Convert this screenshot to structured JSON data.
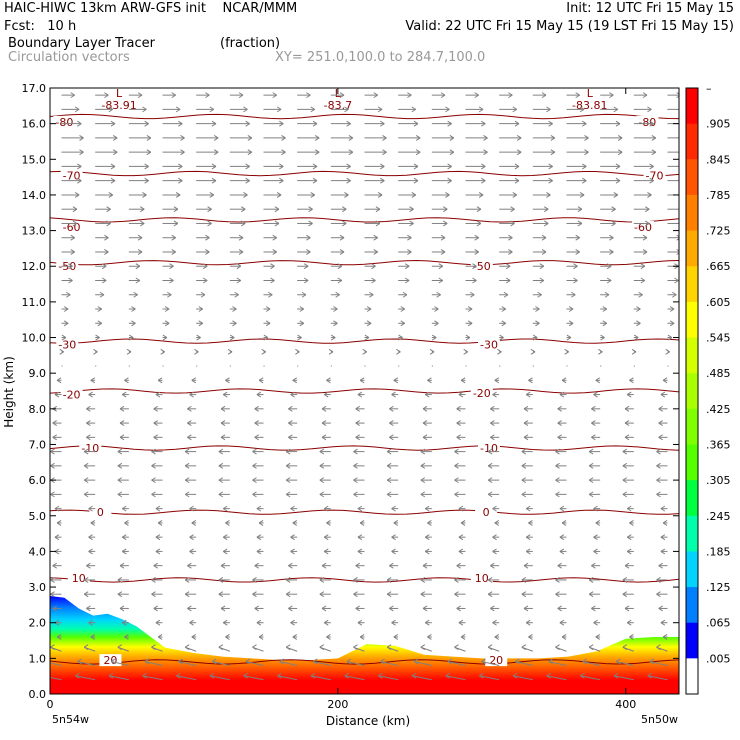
{
  "header": {
    "line1_left": "HAIC-HIWC 13km ARW-GFS init    NCAR/MMM",
    "line1_right": "Init: 12 UTC Fri 15 May 15",
    "line2_left": "Fcst:   10 h",
    "line2_right": "Valid: 22 UTC Fri 15 May 15 (19 LST Fri 15 May 15)",
    "field_name": "Boundary Layer Tracer",
    "field_units": "(fraction)",
    "vector_name": "Circulation vectors",
    "xy_text": "XY= 251.0,100.0 to 284.7,100.0"
  },
  "chart_data": {
    "type": "heatmap",
    "xlabel": "Distance (km)",
    "ylabel": "Height (km)",
    "xlim": [
      0,
      437
    ],
    "ylim": [
      0,
      17
    ],
    "x_ticks": [
      "0",
      "200",
      "400"
    ],
    "x_tick_values": [
      0,
      200,
      400
    ],
    "x_end_labels": [
      "5n54w",
      "5n50w"
    ],
    "y_ticks": [
      "0.0",
      "1.0",
      "2.0",
      "3.0",
      "4.0",
      "5.0",
      "6.0",
      "7.0",
      "8.0",
      "9.0",
      "10.0",
      "11.0",
      "12.0",
      "13.0",
      "14.0",
      "15.0",
      "16.0",
      "17.0"
    ],
    "colorbar": {
      "labels": [
        "–",
        ".905",
        ".845",
        ".785",
        ".725",
        ".665",
        ".605",
        ".545",
        ".485",
        ".425",
        ".365",
        ".305",
        ".245",
        ".185",
        ".125",
        ".065",
        ".005"
      ],
      "colors": [
        "#ff0000",
        "#ff2a00",
        "#ff5500",
        "#ff7f00",
        "#ffaa00",
        "#ffd400",
        "#ffff00",
        "#d4ff00",
        "#aaff00",
        "#7fff00",
        "#55ff00",
        "#00ff40",
        "#00ffaa",
        "#00d4ff",
        "#007fff",
        "#0000ff",
        "#ffffff"
      ]
    },
    "tracer_top_profile": {
      "x_km": [
        0,
        10,
        20,
        30,
        40,
        50,
        60,
        70,
        80,
        100,
        120,
        140,
        160,
        180,
        200,
        220,
        240,
        260,
        280,
        300,
        320,
        340,
        360,
        380,
        400,
        420,
        437
      ],
      "top_km": [
        2.75,
        2.7,
        2.4,
        2.2,
        2.25,
        2.1,
        1.9,
        1.6,
        1.3,
        1.15,
        1.05,
        1.0,
        0.95,
        0.95,
        1.0,
        1.4,
        1.35,
        1.1,
        1.05,
        1.0,
        1.0,
        1.0,
        1.05,
        1.2,
        1.55,
        1.6,
        1.6
      ]
    },
    "temperature_contours": [
      {
        "label": "-80",
        "height_km": 16.2
      },
      {
        "label": "-70",
        "height_km": 14.6
      },
      {
        "label": "-60",
        "height_km": 13.3
      },
      {
        "label": "-50",
        "height_km": 12.1
      },
      {
        "label": "-30",
        "height_km": 9.9
      },
      {
        "label": "-20",
        "height_km": 8.5
      },
      {
        "label": "-10",
        "height_km": 6.9
      },
      {
        "label": "0",
        "height_km": 5.1
      },
      {
        "label": "10",
        "height_km": 3.2
      },
      {
        "label": "20",
        "height_km": 0.9
      }
    ],
    "contour_label_positions_km": {
      "-80": [
        [
          10,
          16.05
        ],
        [
          415,
          16.05
        ]
      ],
      "-70": [
        [
          15,
          14.55
        ],
        [
          420,
          14.55
        ]
      ],
      "-60": [
        [
          15,
          13.1
        ],
        [
          412,
          13.1
        ]
      ],
      "-50": [
        [
          12,
          12.0
        ],
        [
          300,
          12.0
        ]
      ],
      "-30": [
        [
          12,
          9.8
        ],
        [
          305,
          9.8
        ]
      ],
      "-20": [
        [
          15,
          8.4
        ],
        [
          300,
          8.45
        ]
      ],
      "-10": [
        [
          28,
          6.9
        ],
        [
          305,
          6.9
        ]
      ],
      "0": [
        [
          35,
          5.1
        ],
        [
          303,
          5.1
        ]
      ],
      "10": [
        [
          20,
          3.25
        ],
        [
          300,
          3.25
        ]
      ],
      "20": [
        [
          42,
          0.95
        ],
        [
          310,
          0.95
        ]
      ]
    },
    "minimum_labels": [
      {
        "letter": "L",
        "value": "-83.91",
        "x_km": 48,
        "y_km": 16.8
      },
      {
        "letter": "L",
        "value": "-83.7",
        "x_km": 200,
        "y_km": 16.8
      },
      {
        "letter": "L",
        "value": "-83.81",
        "x_km": 375,
        "y_km": 16.8
      }
    ],
    "vector_field": {
      "description_direction": "upper levels westerly (rightward), lower/middle levels easterly (leftward), near-surface easterly with upward motion",
      "levels_km": [
        0.4,
        0.8,
        1.2,
        1.6,
        2.0,
        2.4,
        2.8,
        3.2,
        3.6,
        4.0,
        4.4,
        4.8,
        5.2,
        5.6,
        6.0,
        6.4,
        6.8,
        7.2,
        7.6,
        8.0,
        8.4,
        8.8,
        9.2,
        9.6,
        10.0,
        10.4,
        10.8,
        11.2,
        11.6,
        12.0,
        12.4,
        12.8,
        13.2,
        13.6,
        14.0,
        14.4,
        14.8,
        15.2,
        15.6,
        16.0,
        16.4,
        16.8
      ],
      "u_rel": [
        -0.9,
        -0.8,
        -0.5,
        -0.2,
        -0.3,
        -0.4,
        -0.5,
        -0.5,
        -0.4,
        -0.3,
        -0.3,
        -0.2,
        -0.3,
        -0.5,
        -0.5,
        -0.5,
        -0.5,
        -0.4,
        -0.4,
        -0.4,
        -0.3,
        -0.2,
        0.05,
        0.1,
        0.2,
        0.3,
        0.3,
        0.4,
        0.5,
        0.5,
        0.6,
        0.6,
        0.7,
        0.7,
        0.8,
        0.9,
        0.9,
        1.0,
        1.0,
        0.9,
        0.8,
        0.6
      ]
    }
  }
}
